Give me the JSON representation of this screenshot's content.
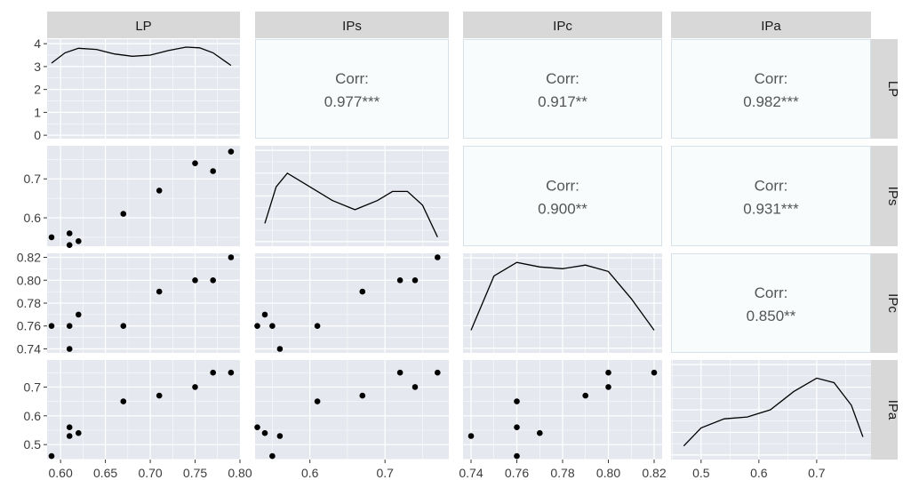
{
  "chart_data": {
    "type": "scatter-matrix",
    "variables": [
      "LP",
      "IPs",
      "IPc",
      "IPa"
    ],
    "axes": {
      "LP": {
        "range": [
          0.585,
          0.8
        ],
        "ticks": [
          0.6,
          0.65,
          0.7,
          0.75,
          0.8
        ],
        "tick_labels": [
          "0.60",
          "0.65",
          "0.70",
          "0.75",
          "0.80"
        ]
      },
      "IPs": {
        "range": [
          0.527,
          0.785
        ],
        "ticks": [
          0.6,
          0.7
        ],
        "tick_labels": [
          "0.6",
          "0.7"
        ]
      },
      "IPc": {
        "range": [
          0.7365,
          0.8235
        ],
        "ticks": [
          0.74,
          0.76,
          0.78,
          0.8,
          0.82
        ],
        "tick_labels": [
          "0.74",
          "0.76",
          "0.78",
          "0.80",
          "0.82"
        ]
      },
      "IPa": {
        "range": [
          0.448,
          0.794
        ],
        "ticks": [
          0.5,
          0.6,
          0.7
        ],
        "tick_labels": [
          "0.5",
          "0.6",
          "0.7"
        ]
      }
    },
    "density_y_axis": {
      "range": [
        -0.15,
        4.2
      ],
      "ticks": [
        0,
        1,
        2,
        3,
        4
      ],
      "tick_labels": [
        "0",
        "1",
        "2",
        "3",
        "4"
      ]
    },
    "observations": {
      "LP": [
        0.59,
        0.61,
        0.62,
        0.67,
        0.71,
        0.75,
        0.77,
        0.79,
        0.61
      ],
      "IPs": [
        0.55,
        0.56,
        0.54,
        0.61,
        0.67,
        0.74,
        0.72,
        0.77,
        0.53
      ],
      "IPc": [
        0.76,
        0.74,
        0.77,
        0.76,
        0.79,
        0.8,
        0.8,
        0.82,
        0.76
      ],
      "IPa": [
        0.46,
        0.53,
        0.54,
        0.65,
        0.67,
        0.7,
        0.75,
        0.75,
        0.56
      ]
    },
    "densities": {
      "LP": {
        "x": [
          0.59,
          0.605,
          0.62,
          0.64,
          0.66,
          0.68,
          0.7,
          0.72,
          0.74,
          0.755,
          0.77,
          0.79
        ],
        "y": [
          3.15,
          3.6,
          3.8,
          3.75,
          3.55,
          3.45,
          3.5,
          3.7,
          3.85,
          3.82,
          3.6,
          3.05
        ]
      },
      "IPs": {
        "x": [
          0.54,
          0.555,
          0.57,
          0.6,
          0.63,
          0.66,
          0.69,
          0.71,
          0.73,
          0.75,
          0.77
        ],
        "y": [
          0.2,
          0.6,
          0.75,
          0.6,
          0.45,
          0.35,
          0.45,
          0.55,
          0.55,
          0.4,
          0.05
        ]
      },
      "IPc": {
        "x": [
          0.74,
          0.75,
          0.76,
          0.77,
          0.78,
          0.79,
          0.8,
          0.81,
          0.82
        ],
        "y": [
          0.2,
          0.8,
          0.95,
          0.9,
          0.88,
          0.92,
          0.85,
          0.55,
          0.2
        ]
      },
      "IPa": {
        "x": [
          0.47,
          0.5,
          0.54,
          0.58,
          0.62,
          0.66,
          0.7,
          0.73,
          0.76,
          0.78
        ],
        "y": [
          0.1,
          0.3,
          0.4,
          0.42,
          0.5,
          0.7,
          0.85,
          0.8,
          0.55,
          0.2
        ]
      }
    },
    "correlations": [
      {
        "row": "LP",
        "col": "IPs",
        "label": "Corr:",
        "value": "0.977***"
      },
      {
        "row": "LP",
        "col": "IPc",
        "label": "Corr:",
        "value": "0.917**"
      },
      {
        "row": "LP",
        "col": "IPa",
        "label": "Corr:",
        "value": "0.982***"
      },
      {
        "row": "IPs",
        "col": "IPc",
        "label": "Corr:",
        "value": "0.900**"
      },
      {
        "row": "IPs",
        "col": "IPa",
        "label": "Corr:",
        "value": "0.931***"
      },
      {
        "row": "IPc",
        "col": "IPa",
        "label": "Corr:",
        "value": "0.850**"
      }
    ],
    "grid": true
  },
  "colors": {
    "panel_background": "#e5e8ef",
    "corr_panel_background": "#f8fcfd",
    "corr_panel_border": "#d6e2e8",
    "strip_background": "#d8d8d8",
    "strip_text": "#1a1a1a",
    "point": "#000000",
    "density_line": "#000000",
    "grid_major": "#ffffff",
    "corr_text": "#555555"
  }
}
